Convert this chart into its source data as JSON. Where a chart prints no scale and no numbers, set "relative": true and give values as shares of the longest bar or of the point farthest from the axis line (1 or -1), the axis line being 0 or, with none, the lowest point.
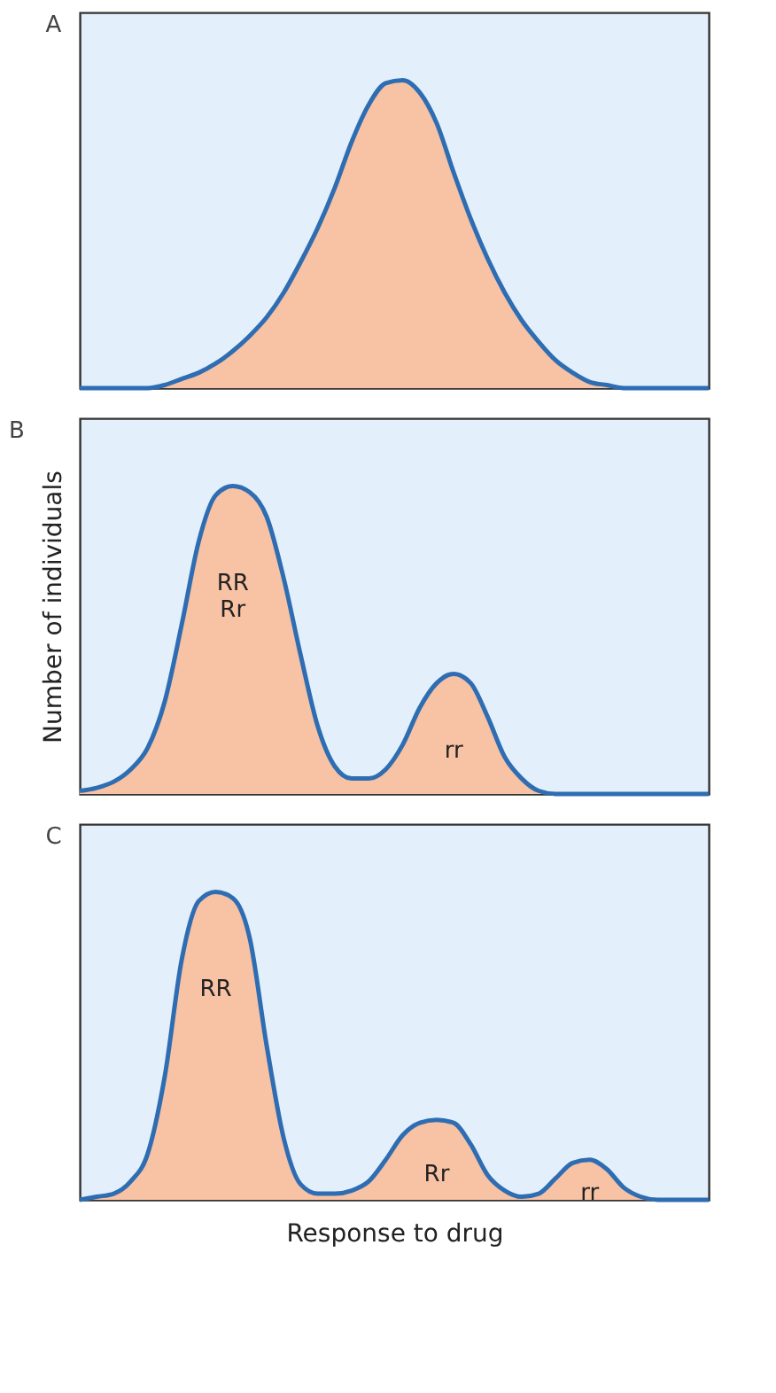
{
  "chart_data": [
    {
      "type": "area",
      "title": "A",
      "relative": true,
      "tick_labels": false,
      "grid": false,
      "categories": [
        null,
        null,
        null,
        null,
        null,
        null,
        null,
        null,
        null,
        null,
        null,
        null,
        null,
        null,
        null,
        null,
        null,
        null,
        null,
        null,
        null,
        null,
        null,
        null,
        null,
        null,
        null,
        null,
        null,
        null,
        null,
        null,
        null,
        null,
        null,
        null,
        null,
        null
      ],
      "series": [
        {
          "color": "#f8c2a4",
          "values": [
            0,
            0,
            0,
            0,
            0,
            0.01,
            0.03,
            0.05,
            0.08,
            0.12,
            0.17,
            0.23,
            0.31,
            0.41,
            0.52,
            0.65,
            0.8,
            0.92,
            0.99,
            1.0,
            0.96,
            0.86,
            0.7,
            0.55,
            0.42,
            0.31,
            0.22,
            0.15,
            0.09,
            0.05,
            0.02,
            0.01,
            0,
            0,
            0,
            0,
            0,
            0
          ]
        }
      ]
    },
    {
      "type": "area",
      "title": "B",
      "ylabel": "Number of individuals",
      "relative": true,
      "tick_labels": false,
      "grid": false,
      "annotations": [
        "RR\nRr",
        "rr"
      ],
      "categories": [
        null,
        null,
        null,
        null,
        null,
        null,
        null,
        null,
        null,
        null,
        null,
        null,
        null,
        null,
        null,
        null,
        null,
        null,
        null,
        null,
        null,
        null,
        null,
        null,
        null,
        null,
        null,
        null,
        null,
        null,
        null,
        null,
        null,
        null,
        null,
        null,
        null,
        null
      ],
      "series": [
        {
          "color": "#f8c2a4",
          "values": [
            0.01,
            0.02,
            0.04,
            0.08,
            0.15,
            0.3,
            0.55,
            0.82,
            0.97,
            1.0,
            0.98,
            0.9,
            0.7,
            0.45,
            0.22,
            0.09,
            0.05,
            0.05,
            0.08,
            0.16,
            0.28,
            0.36,
            0.39,
            0.36,
            0.25,
            0.12,
            0.05,
            0.01,
            0,
            0,
            0,
            0,
            0,
            0,
            0,
            0,
            0,
            0
          ]
        }
      ]
    },
    {
      "type": "area",
      "title": "C",
      "xlabel": "Response to drug",
      "relative": true,
      "tick_labels": false,
      "grid": false,
      "annotations": [
        "RR",
        "Rr",
        "rr"
      ],
      "categories": [
        null,
        null,
        null,
        null,
        null,
        null,
        null,
        null,
        null,
        null,
        null,
        null,
        null,
        null,
        null,
        null,
        null,
        null,
        null,
        null,
        null,
        null,
        null,
        null,
        null,
        null,
        null,
        null,
        null,
        null,
        null,
        null,
        null,
        null,
        null,
        null,
        null,
        null
      ],
      "series": [
        {
          "color": "#f8c2a4",
          "values": [
            0,
            0.01,
            0.02,
            0.06,
            0.15,
            0.4,
            0.78,
            0.97,
            1.0,
            0.98,
            0.85,
            0.5,
            0.2,
            0.05,
            0.02,
            0.02,
            0.03,
            0.06,
            0.13,
            0.21,
            0.25,
            0.26,
            0.25,
            0.18,
            0.08,
            0.03,
            0.01,
            0.02,
            0.07,
            0.12,
            0.13,
            0.1,
            0.04,
            0.01,
            0,
            0,
            0,
            0
          ]
        }
      ]
    }
  ]
}
